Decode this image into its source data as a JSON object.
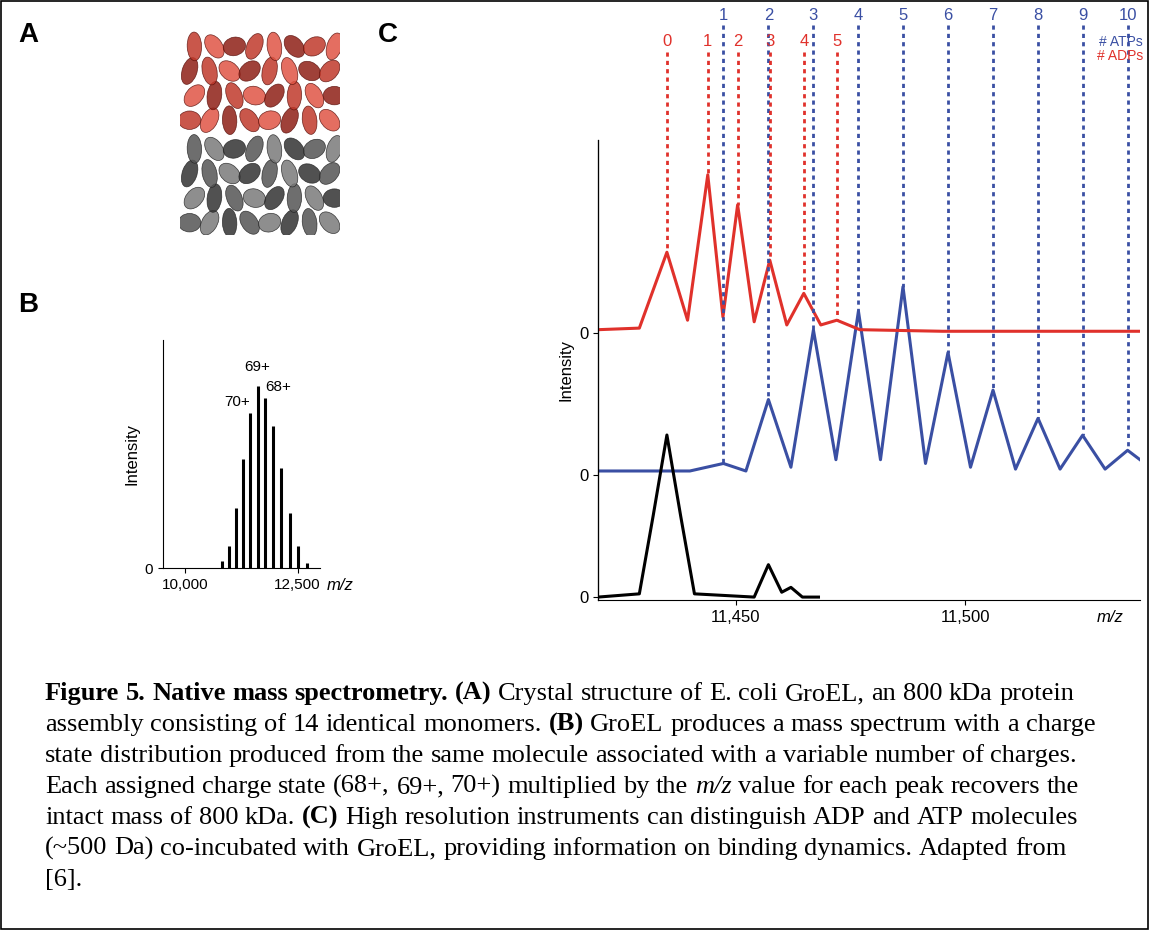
{
  "panel_a": {
    "label": "A"
  },
  "chart_data": [
    {
      "type": "stick",
      "title": "B",
      "xlabel": "m/z",
      "ylabel": "Intensity",
      "color": "#000000",
      "x": [
        10824,
        10973,
        11125,
        11282,
        11443,
        11609,
        11779,
        11955,
        12136,
        12323,
        12516,
        12714
      ],
      "values": [
        0.04,
        0.12,
        0.33,
        0.6,
        0.85,
        1.0,
        0.93,
        0.78,
        0.55,
        0.3,
        0.12,
        0.03
      ],
      "xlim": [
        9500,
        13000
      ],
      "xticks": [
        {
          "value": 10000,
          "label": "10,000"
        },
        {
          "value": 12500,
          "label": "12,500"
        }
      ],
      "ylim": [
        0,
        1.25
      ],
      "yticks": [
        0
      ],
      "annotations": [
        {
          "text": "70+",
          "x": 11443
        },
        {
          "text": "69+",
          "x": 11609
        },
        {
          "text": "68+",
          "x": 11779
        }
      ]
    },
    {
      "type": "line",
      "title": "C",
      "xlabel": "m/z",
      "ylabel": "Intensity",
      "xlim": [
        11420,
        11538
      ],
      "xticks": [
        {
          "value": 11450,
          "label": "11,450"
        },
        {
          "value": 11500,
          "label": "11,500"
        }
      ],
      "series": [
        {
          "name": "# ATPs",
          "color": "#3a4fa3",
          "x": [
            11420,
            11440,
            11447.3,
            11452.2,
            11457.1,
            11462.0,
            11466.9,
            11471.8,
            11476.7,
            11481.5,
            11486.4,
            11491.3,
            11496.2,
            11501.1,
            11506.0,
            11510.9,
            11515.8,
            11520.6,
            11525.5,
            11530.4,
            11535.3,
            11538
          ],
          "values": [
            0.02,
            0.02,
            0.06,
            0.02,
            0.4,
            0.04,
            0.77,
            0.08,
            0.87,
            0.08,
            1.0,
            0.06,
            0.65,
            0.04,
            0.45,
            0.03,
            0.3,
            0.03,
            0.21,
            0.03,
            0.13,
            0.08
          ],
          "ylim": [
            -0.666,
            1.78
          ],
          "yticks": [
            0
          ],
          "annotations": [
            {
              "text": "1",
              "x": 11447.3
            },
            {
              "text": "2",
              "x": 11457.1
            },
            {
              "text": "3",
              "x": 11466.9
            },
            {
              "text": "4",
              "x": 11476.7
            },
            {
              "text": "5",
              "x": 11486.4
            },
            {
              "text": "6",
              "x": 11496.2
            },
            {
              "text": "7",
              "x": 11506.0
            },
            {
              "text": "8",
              "x": 11515.8
            },
            {
              "text": "9",
              "x": 11525.5
            },
            {
              "text": "10",
              "x": 11535.3
            }
          ]
        },
        {
          "name": "# ADPs",
          "color": "#e0312b",
          "x": [
            11420,
            11429,
            11435.0,
            11439.5,
            11443.9,
            11447.2,
            11450.4,
            11454.0,
            11457.4,
            11461.1,
            11464.8,
            11468.5,
            11472.0,
            11477,
            11495,
            11538
          ],
          "values": [
            0.02,
            0.03,
            0.51,
            0.08,
            1.0,
            0.1,
            0.81,
            0.07,
            0.46,
            0.05,
            0.25,
            0.05,
            0.08,
            0.02,
            0.01,
            0.01
          ],
          "ylim": [
            -1.69,
            1.22
          ],
          "yticks": [
            0
          ],
          "annotations": [
            {
              "text": "0",
              "x": 11435.0
            },
            {
              "text": "1",
              "x": 11443.9
            },
            {
              "text": "2",
              "x": 11450.4
            },
            {
              "text": "3",
              "x": 11457.4
            },
            {
              "text": "4",
              "x": 11464.8
            },
            {
              "text": "5",
              "x": 11472.0
            }
          ]
        },
        {
          "color": "#000000",
          "x": [
            11420,
            11429,
            11432,
            11435.0,
            11438,
            11441,
            11454,
            11457.1,
            11460,
            11462,
            11464.5,
            11468
          ],
          "values": [
            0.0,
            0.02,
            0.5,
            1.0,
            0.5,
            0.02,
            0.0,
            0.2,
            0.03,
            0.06,
            0.0,
            0.0
          ],
          "ylim": [
            -0.018,
            2.82
          ],
          "yticks": [
            0
          ]
        }
      ]
    }
  ],
  "caption": {
    "runs": [
      {
        "text": "Figure 5. Native mass spectrometry.",
        "style": "bold"
      },
      {
        "text": "(A)",
        "style": "bold"
      },
      {
        "text": "Crystal structure of E. coli GroEL, an 800 kDa protein assembly consisting of 14 identical monomers.",
        "style": "normal"
      },
      {
        "text": "(B)",
        "style": "bold"
      },
      {
        "text": "GroEL produces a mass spectrum with a charge state distribution produced from the same molecule associated with a variable number of charges. Each assigned charge state (68+, 69+, 70+) multiplied by the",
        "style": "normal"
      },
      {
        "text": "m/z",
        "style": "italic"
      },
      {
        "text": "value for each peak recovers the intact mass of 800 kDa.",
        "style": "normal"
      },
      {
        "text": "(C)",
        "style": "bold"
      },
      {
        "text": "High resolution instruments can distinguish ADP and ATP molecules (~500 Da) co-incubated with GroEL, providing information on binding dynamics. Adapted from [6].",
        "style": "normal"
      }
    ]
  }
}
